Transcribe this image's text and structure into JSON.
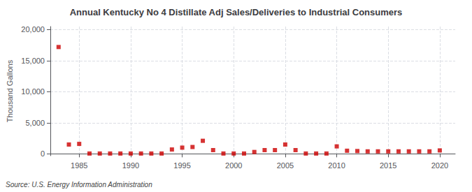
{
  "chart_data": {
    "type": "scatter",
    "title": "Annual Kentucky No 4 Distillate Adj Sales/Deliveries to Industrial Consumers",
    "ylabel": "Thousand Gallons",
    "source": "Source: U.S. Energy Information Administration",
    "x": [
      1983,
      1984,
      1985,
      1986,
      1987,
      1988,
      1989,
      1990,
      1991,
      1992,
      1993,
      1994,
      1995,
      1996,
      1997,
      1998,
      1999,
      2000,
      2001,
      2002,
      2003,
      2004,
      2005,
      2006,
      2007,
      2008,
      2009,
      2010,
      2011,
      2012,
      2013,
      2014,
      2015,
      2016,
      2017,
      2018,
      2019,
      2020
    ],
    "values": [
      17200,
      1500,
      1600,
      50,
      50,
      50,
      50,
      50,
      50,
      50,
      50,
      700,
      1000,
      1100,
      2100,
      600,
      50,
      50,
      50,
      300,
      600,
      600,
      1500,
      600,
      50,
      50,
      50,
      1200,
      500,
      450,
      400,
      400,
      400,
      400,
      400,
      400,
      400,
      550
    ],
    "color": "#cc0000",
    "marker": "square",
    "xlim": [
      1982.2,
      2021.5
    ],
    "xticks": [
      1985,
      1990,
      1995,
      2000,
      2005,
      2010,
      2015,
      2020
    ],
    "ylim": [
      -300,
      20500
    ],
    "yticks": [
      0,
      {
        "value": 5000,
        "label": "5,000"
      },
      {
        "value": 10000,
        "label": "10,000"
      },
      {
        "value": 15000,
        "label": "15,000"
      },
      {
        "value": 20000,
        "label": "20,000"
      }
    ],
    "grid": true
  }
}
